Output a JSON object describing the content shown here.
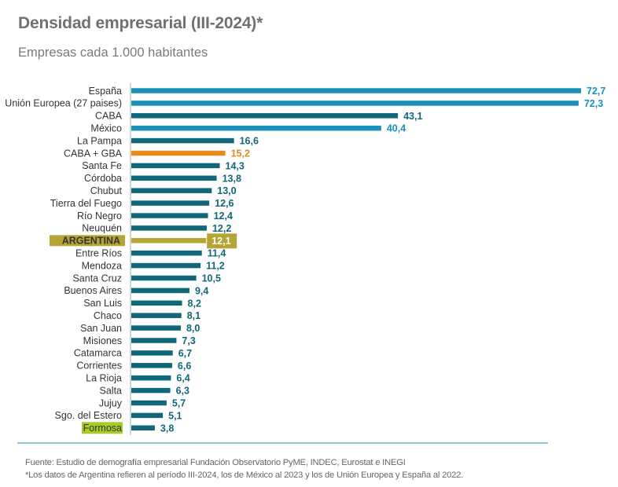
{
  "chart_data": {
    "type": "bar",
    "orientation": "horizontal",
    "title": "Densidad empresarial (III-2024)*",
    "subtitle": "Empresas cada 1.000 habitantes",
    "xlabel": "",
    "ylabel": "",
    "xlim": [
      0,
      72.7
    ],
    "grid": false,
    "legend": "none",
    "categories": [
      "España",
      "Unión Europea (27 paises)",
      "CABA",
      "México",
      "La Pampa",
      "CABA + GBA",
      "Santa Fe",
      "Córdoba",
      "Chubut",
      "Tierra del Fuego",
      "Río Negro",
      "Neuquén",
      "ARGENTINA",
      "Entre Ríos",
      "Mendoza",
      "Santa Cruz",
      "Buenos Aires",
      "San Luis",
      "Chaco",
      "San Juan",
      "Misiones",
      "Catamarca",
      "Corrientes",
      "La Rioja",
      "Salta",
      "Jujuy",
      "Sgo. del Estero",
      "Formosa"
    ],
    "values": [
      72.7,
      72.3,
      43.1,
      40.4,
      16.6,
      15.2,
      14.3,
      13.8,
      13.0,
      12.6,
      12.4,
      12.2,
      12.1,
      11.4,
      11.2,
      10.5,
      9.4,
      8.2,
      8.1,
      8.0,
      7.3,
      6.7,
      6.6,
      6.4,
      6.3,
      5.7,
      5.1,
      3.8
    ],
    "value_labels": [
      "72,7",
      "72,3",
      "43,1",
      "40,4",
      "16,6",
      "15,2",
      "14,3",
      "13,8",
      "13,0",
      "12,6",
      "12,4",
      "12,2",
      "12,1",
      "11,4",
      "11,2",
      "10,5",
      "9,4",
      "8,2",
      "8,1",
      "8,0",
      "7,3",
      "6,7",
      "6,6",
      "6,4",
      "6,3",
      "5,7",
      "5,1",
      "3,8"
    ],
    "bar_styles": [
      "intl",
      "intl",
      "prov",
      "intl",
      "prov",
      "gba",
      "prov",
      "prov",
      "prov",
      "prov",
      "prov",
      "prov",
      "argentina",
      "prov",
      "prov",
      "prov",
      "prov",
      "prov",
      "prov",
      "prov",
      "prov",
      "prov",
      "prov",
      "prov",
      "prov",
      "prov",
      "prov",
      "prov"
    ],
    "label_highlights": {
      "ARGENTINA": "argentina",
      "Formosa": "formosa"
    }
  },
  "colors": {
    "intl": "#1b8fb8",
    "prov": "#11667a",
    "gba": "#e8891e",
    "argentina": "#b5a634",
    "argentina_text": "#ffffff",
    "formosa_highlight": "#a8cc24",
    "axis": "#b8b8b8"
  },
  "footer": {
    "source": "Fuente: Estudio de demografía empresarial Fundación Observatorio PyME, INDEC, Eurostat e INEGI",
    "note": "*Los datos de Argentina refieren al período III-2024, los de México al 2023 y los de Unión Europea y España al 2022."
  }
}
